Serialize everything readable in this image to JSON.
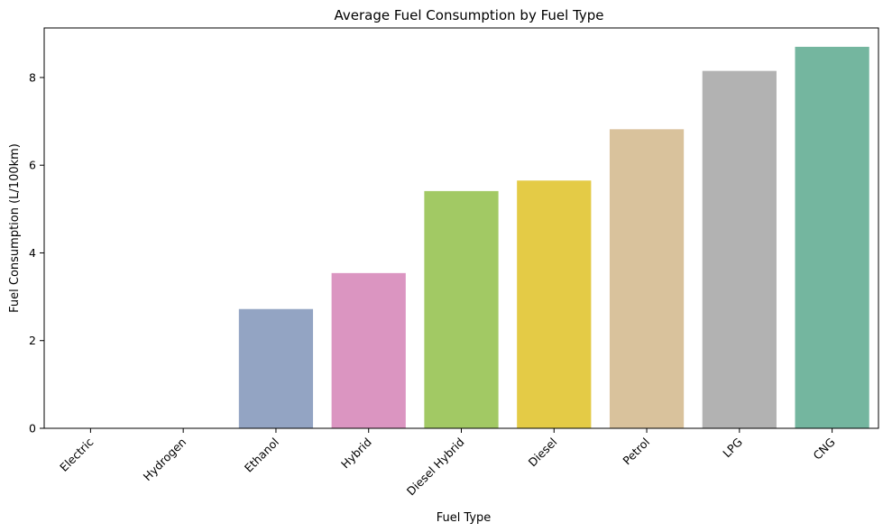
{
  "chart_data": {
    "type": "bar",
    "title": "Average Fuel Consumption by Fuel Type",
    "xlabel": "Fuel Type",
    "ylabel": "Fuel Consumption (L/100km)",
    "categories": [
      "Electric",
      "Hydrogen",
      "Ethanol",
      "Hybrid",
      "Diesel Hybrid",
      "Diesel",
      "Petrol",
      "LPG",
      "CNG"
    ],
    "values": [
      0,
      0,
      2.72,
      3.54,
      5.41,
      5.65,
      6.82,
      8.15,
      8.7
    ],
    "colors": [
      "#66c2a5",
      "#fc8d62",
      "#93a4c3",
      "#db95c1",
      "#a2c964",
      "#e4cb46",
      "#d9c29c",
      "#b2b2b2",
      "#74b69f"
    ],
    "ylim": [
      0,
      9.13
    ],
    "yticks": [
      0,
      2,
      4,
      6,
      8
    ],
    "grid": false,
    "legend": "none"
  }
}
